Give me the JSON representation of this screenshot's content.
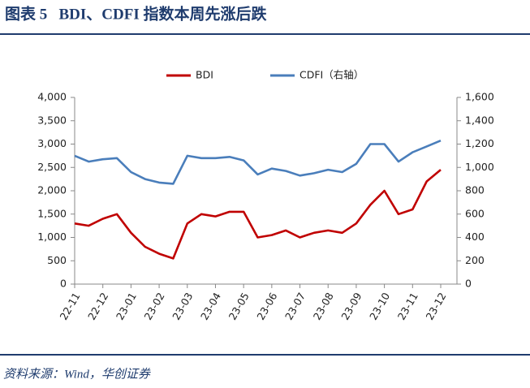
{
  "header": {
    "title": "图表 5   BDI、CDFI 指数本周先涨后跌"
  },
  "chart_data": {
    "type": "line",
    "categories": [
      "22-11",
      null,
      "22-12",
      null,
      "23-01",
      null,
      "23-02",
      null,
      "23-03",
      null,
      "23-04",
      null,
      "23-05",
      null,
      "23-06",
      null,
      "23-07",
      null,
      "23-08",
      null,
      "23-09",
      null,
      "23-10",
      null,
      "23-11",
      null,
      "23-12"
    ],
    "series": [
      {
        "name": "BDI",
        "color": "#c00000",
        "values": [
          1300,
          1250,
          1400,
          1500,
          1100,
          800,
          650,
          550,
          1300,
          1500,
          1450,
          1550,
          1550,
          1000,
          1050,
          1150,
          1000,
          1100,
          1150,
          1100,
          1300,
          1700,
          2000,
          1500,
          1600,
          2200,
          2450
        ]
      },
      {
        "name": "CDFI（右轴）",
        "color": "#4a7ebb",
        "axis": "y2",
        "values": [
          1100,
          1050,
          1070,
          1080,
          960,
          900,
          870,
          860,
          1100,
          1080,
          1080,
          1090,
          1060,
          940,
          990,
          970,
          930,
          950,
          980,
          960,
          1030,
          1200,
          1200,
          1050,
          1130,
          1180,
          1230
        ]
      }
    ],
    "ylim": [
      0,
      4000
    ],
    "yticks": [
      0,
      500,
      {
        "value": 1000,
        "label": "1,000"
      },
      {
        "value": 1500,
        "label": "1,500"
      },
      {
        "value": 2000,
        "label": "2,000"
      },
      {
        "value": 2500,
        "label": "2,500"
      },
      {
        "value": 3000,
        "label": "3,000"
      },
      {
        "value": 3500,
        "label": "3,500"
      },
      {
        "value": 4000,
        "label": "4,000"
      }
    ],
    "y2lim": [
      0,
      1600
    ],
    "y2ticks": [
      0,
      200,
      400,
      600,
      800,
      {
        "value": 1000,
        "label": "1,000"
      },
      {
        "value": 1200,
        "label": "1,200"
      },
      {
        "value": 1400,
        "label": "1,400"
      },
      {
        "value": 1600,
        "label": "1,600"
      }
    ],
    "legend": "top"
  },
  "footer": {
    "source": "资料来源：Wind，华创证券"
  }
}
